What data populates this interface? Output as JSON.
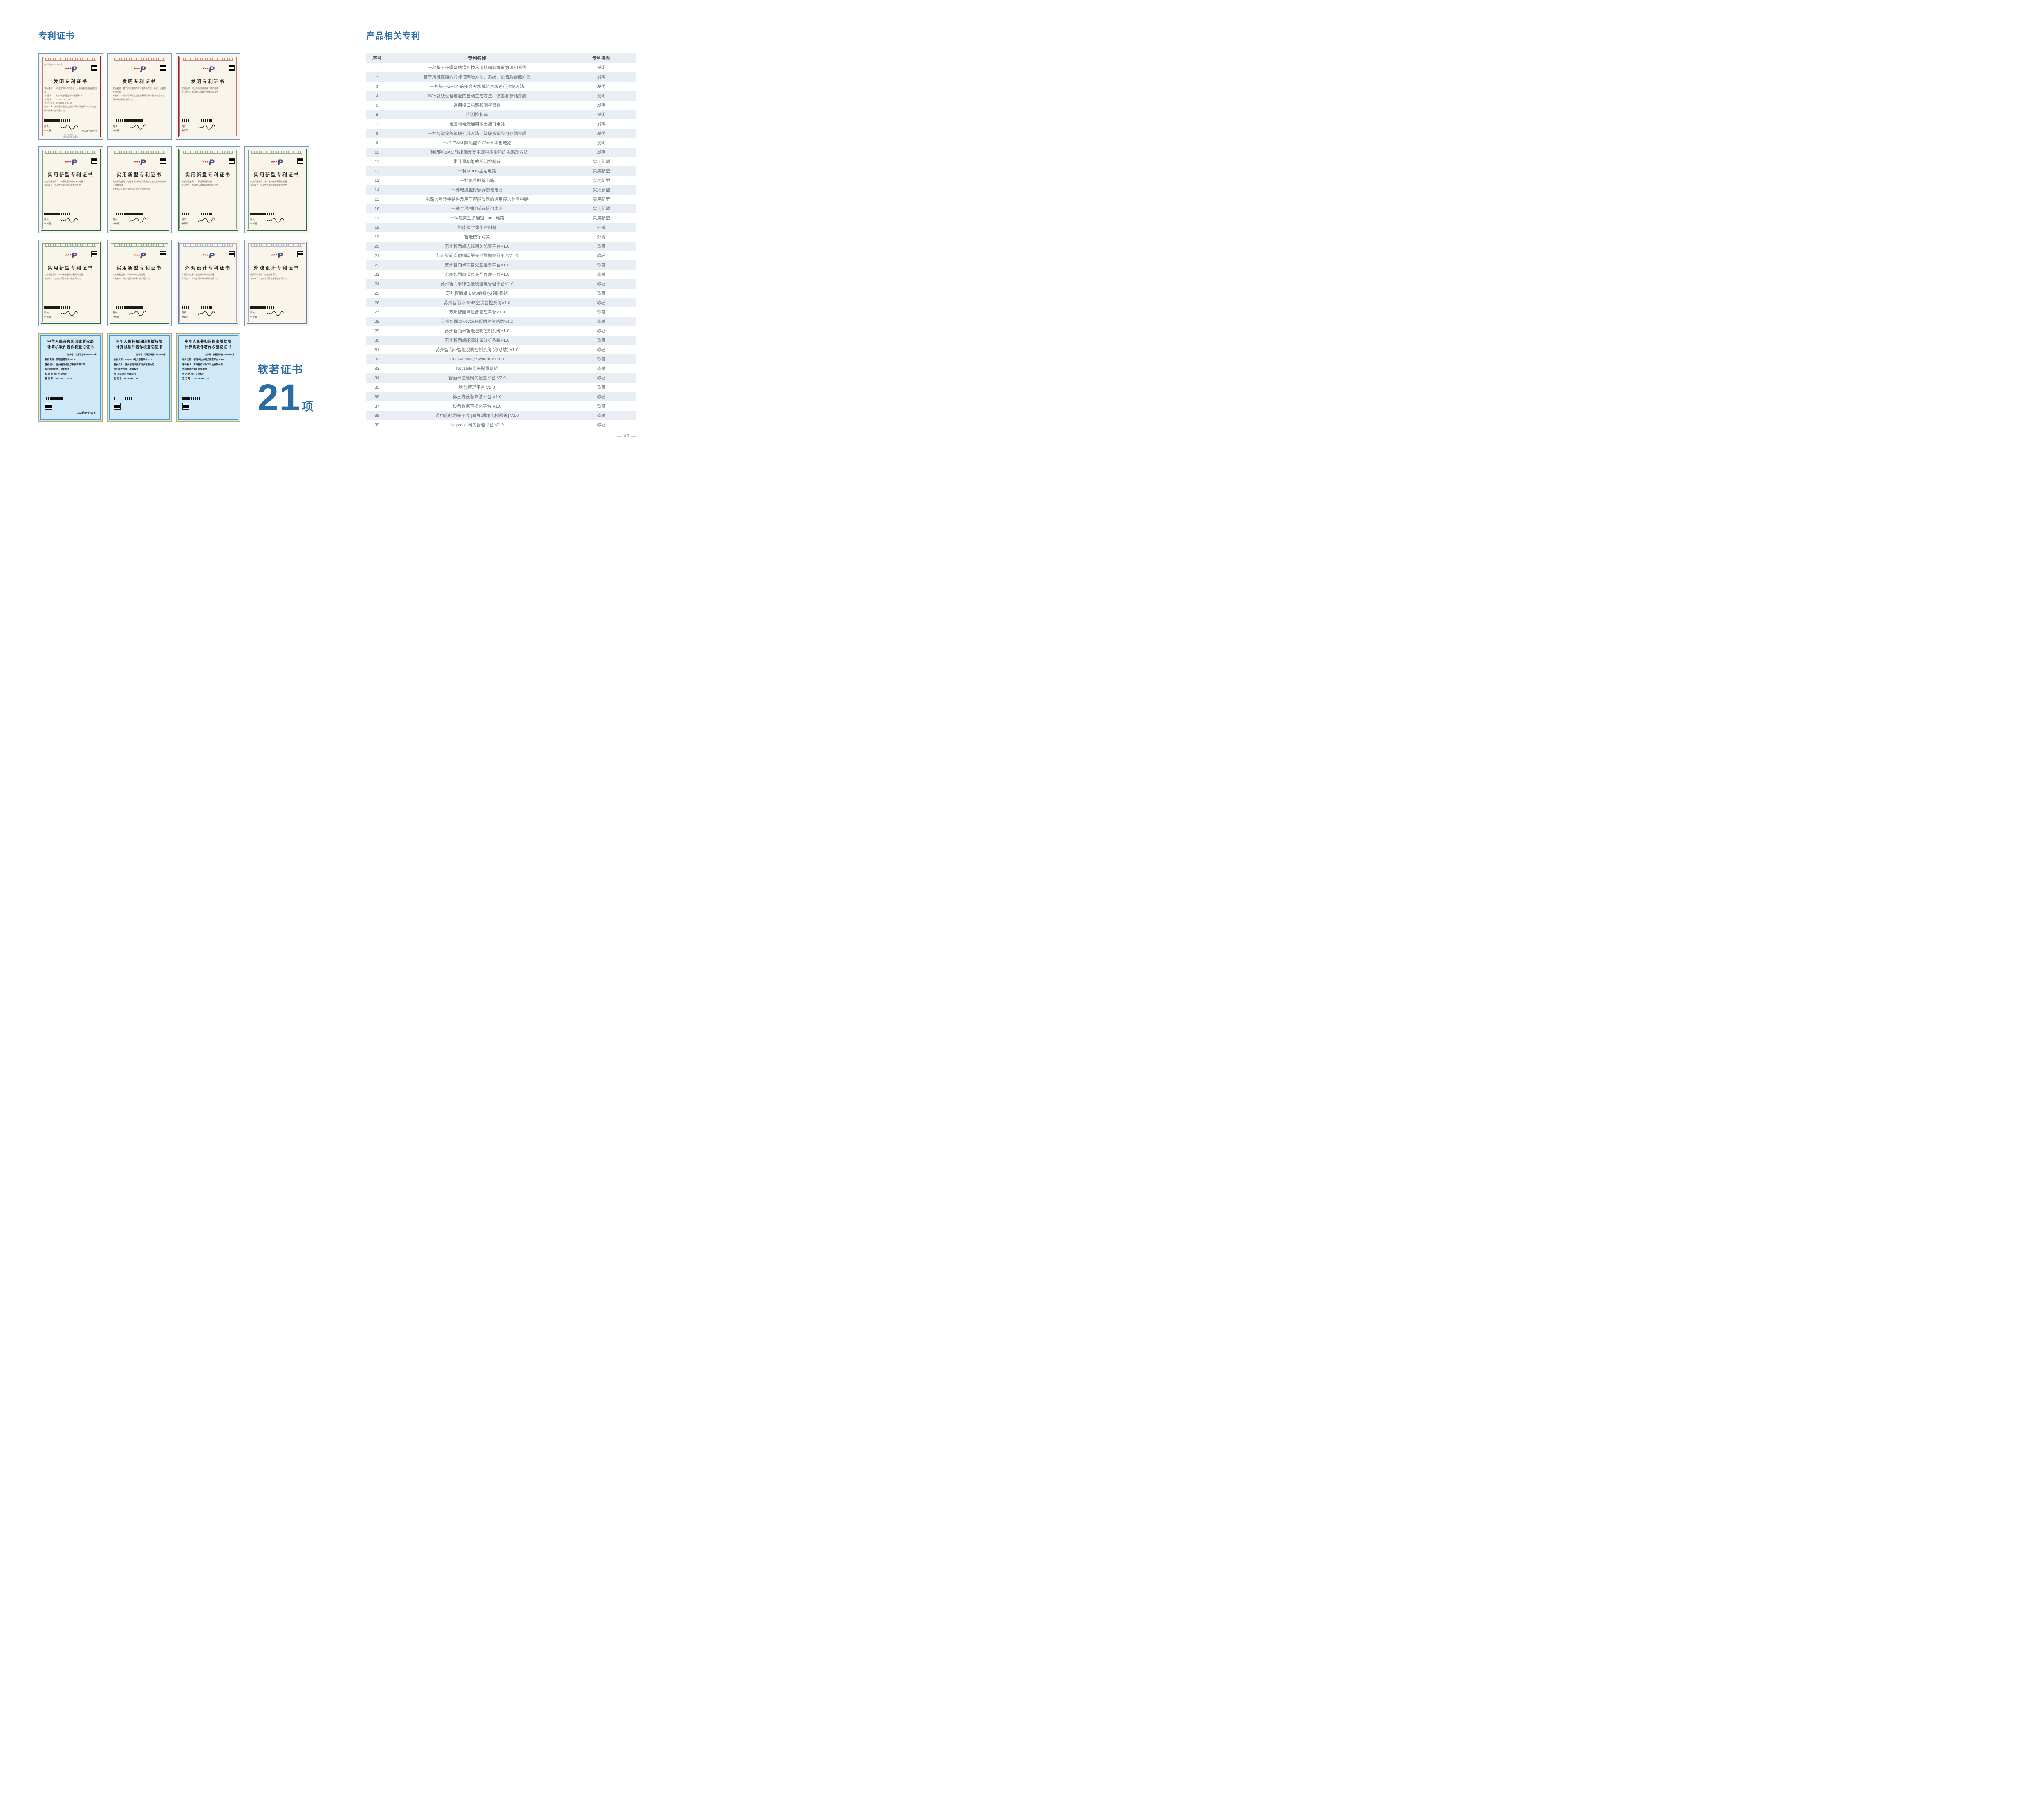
{
  "page": {
    "number": "— 43 —"
  },
  "colors": {
    "accent": "#2b6ca5",
    "stripe": "#e8eef4",
    "cream": "#f9f5ea",
    "invention": "#8e2430",
    "utility": "#2c6a4d",
    "design": "#6678ad",
    "soft_bg": "#cfe9f8",
    "soft_gold": "#c9a45c",
    "soft_blue": "#3f9bd8"
  },
  "left": {
    "title": "专利证书",
    "soft_label": "软著证书",
    "soft_count": "21",
    "soft_unit": "项",
    "cert_rows": [
      [
        {
          "kind": "invention",
          "title": "发明专利证书",
          "cert_no": "证书号第6661534号",
          "lines": [
            "发明名称：一种基于GRNN的多台冷水机组系统运行控制方法",
            "发 明 人：马杰;袁琦;李国建;孙日近;董红林",
            "专 利 号：ZL 2022 1 0427340.7",
            "专利申请日：2022年04月22日",
            "专利权人：苏州思萃融合基建技术研究所有限公司 苏州智而卓数字科技有限公司",
            "授权公告日：2024年01月30日　授权公告号：CN 114636212 B"
          ],
          "signer": "局长",
          "signer_name": "申长雨",
          "date": "2024年01月30日",
          "footer": "第 1 页 (共 2 页)",
          "footer2": "其他事项参见续页"
        },
        {
          "kind": "invention",
          "title": "发明专利证书",
          "cert_no": "",
          "lines": [
            "发明名称：基于风机变频的冷却塔降噪方法、系统、设备及存储介质",
            "专利权人：苏州思萃融合基建技术研究所有限公司 苏州智而卓数字科技有限公司"
          ],
          "signer": "局长",
          "signer_name": "申长雨",
          "date": "",
          "footer": "",
          "footer2": ""
        },
        {
          "kind": "invention",
          "title": "发明专利证书",
          "cert_no": "",
          "lines": [
            "发明名称：电压与电流通用输出接口电路",
            "专利权人：苏州智而卓数字科技有限公司"
          ],
          "signer": "局长",
          "signer_name": "申长雨",
          "date": "",
          "footer": "",
          "footer2": ""
        }
      ],
      [
        {
          "kind": "utility",
          "title": "实用新型专利证书",
          "cert_no": "",
          "lines": [
            "实用新型名称：一种隔离型多通道DAC电路",
            "专利权人：苏州智而卓数字科技有限公司"
          ],
          "signer": "局长",
          "signer_name": "申长雨",
          "date": "",
          "footer": "",
          "footer2": ""
        },
        {
          "kind": "utility",
          "title": "实用新型专利证书",
          "cert_no": "",
          "lines": [
            "实用新型名称：电路信号转换结构及用于智能仪表的通用接入信号电路",
            "专利权人：苏州智而卓数字科技有限公司"
          ],
          "signer": "局长",
          "signer_name": "申长雨",
          "date": "",
          "footer": "",
          "footer2": ""
        },
        {
          "kind": "utility",
          "title": "实用新型专利证书",
          "cert_no": "",
          "lines": [
            "实用新型名称：一种信号解析电路",
            "专利权人：苏州智而卓数字科技有限公司"
          ],
          "signer": "局长",
          "signer_name": "申长雨",
          "date": "",
          "footer": "",
          "footer2": ""
        },
        {
          "kind": "utility",
          "title": "实用新型专利证书",
          "cert_no": "",
          "lines": [
            "实用新型名称：带计量功能的照明控制器",
            "专利权人：苏州智而卓数字科技有限公司"
          ],
          "signer": "局长",
          "signer_name": "申长雨",
          "date": "",
          "footer": "",
          "footer2": ""
        }
      ],
      [
        {
          "kind": "utility",
          "title": "实用新型专利证书",
          "cert_no": "",
          "lines": [
            "实用新型名称：一种电流型传感器授电电路",
            "专利权人：苏州智而卓数字科技有限公司"
          ],
          "signer": "局长",
          "signer_name": "申长雨",
          "date": "",
          "footer": "",
          "footer2": ""
        },
        {
          "kind": "utility",
          "title": "实用新型专利证书",
          "cert_no": "",
          "lines": [
            "实用新型名称：一种MBUS主站电路",
            "专利权人：苏州智而卓数字科技有限公司"
          ],
          "signer": "局长",
          "signer_name": "申长雨",
          "date": "",
          "footer": "",
          "footer2": ""
        },
        {
          "kind": "design",
          "title": "外观设计专利证书",
          "cert_no": "",
          "lines": [
            "外观设计名称：智能楼宇数字控制器",
            "专利权人：苏州智而卓数字科技有限公司"
          ],
          "signer": "局长",
          "signer_name": "申长雨",
          "date": "",
          "footer": "",
          "footer2": ""
        },
        {
          "kind": "design",
          "title": "外观设计专利证书",
          "cert_no": "",
          "lines": [
            "外观设计名称：智能楼宇网关",
            "专利权人：苏州智而卓数字科技有限公司"
          ],
          "signer": "局长",
          "signer_name": "申长雨",
          "date": "",
          "footer": "",
          "footer2": ""
        }
      ],
      [
        {
          "kind": "software",
          "title1": "中华人民共和国国家版权局",
          "title2": "计算机软件著作权登记证书",
          "cert_no": "证书号：软著登字第15865015号",
          "lines": [
            "软件名称：物联管理平台 V2.0",
            "著作权人：苏州智而卓数字科技有限公司",
            "权利取得方式：原始取得",
            "权 利 范 围：全部权利",
            "登 记 号：2025SR1208817"
          ],
          "date": "2025年07月09日"
        },
        {
          "kind": "software",
          "title1": "中华人民共和国国家版权局",
          "title2": "计算机软件著作权登记证书",
          "cert_no": "证书号：软著登字第15835676号",
          "lines": [
            "软件名称：Keyzelle网关管理平台 V1.0",
            "著作权人：苏州智而卓数字科技有限公司",
            "权利取得方式：原始取得",
            "权 利 范 围：全部权利",
            "登 记 号：2025SR1179477"
          ],
          "date": ""
        },
        {
          "kind": "software",
          "title1": "中华人民共和国国家版权局",
          "title2": "计算机软件著作权登记证书",
          "cert_no": "证书号：软著登字第15863449号",
          "lines": [
            "软件名称：智而卓边缘网关配置平台 V2.0",
            "著作权人：苏州智而卓数字科技有限公司",
            "权利取得方式：原始取得",
            "权 利 范 围：全部权利",
            "登 记 号：2025SR1207251"
          ],
          "date": ""
        }
      ]
    ]
  },
  "right": {
    "title": "产品相关专利",
    "table": {
      "headers": [
        "序号",
        "专利名称",
        "专利类型"
      ],
      "rows": [
        [
          "1",
          "一种基于多模型的绿色技术选择辅助决策方法和系统",
          "发明"
        ],
        [
          "2",
          "基于风机变频的冷却塔降噪方法、系统、设备及存储介质",
          "发明"
        ],
        [
          "3",
          "一种基于GRNN的多台冷水机组系统运行控制方法",
          "发明"
        ],
        [
          "4",
          "串行总线设备地址的自动生成方法、装置和存储介质",
          "发明"
        ],
        [
          "5",
          "通用接口电路和测控器件",
          "发明"
        ],
        [
          "6",
          "照明控制器",
          "发明"
        ],
        [
          "7",
          "电压与电流通用输出接口电路",
          "发明"
        ],
        [
          "8",
          "一种智能设备级联扩展方法、级联系统和可存储介质",
          "发明"
        ],
        [
          "9",
          "一种 PWM 隔离型 0-20mA 输出电路",
          "发明"
        ],
        [
          "10",
          "一种消除 DAC 输出偏差受电源电压影响的电路及方法",
          "发明"
        ],
        [
          "11",
          "带计量功能的照明控制器",
          "实用新型"
        ],
        [
          "12",
          "一种MBUS主站电路",
          "实用新型"
        ],
        [
          "13",
          "一种信号解析电路",
          "实用新型"
        ],
        [
          "14",
          "一种电流型传感器授电电路",
          "实用新型"
        ],
        [
          "15",
          "电路信号转换结构及用于智能仪表的通用接入信号电路",
          "实用新型"
        ],
        [
          "16",
          "一种二线制传感器接口电路",
          "实用新型"
        ],
        [
          "17",
          "一种隔离型多通道 DAC 电路",
          "实用新型"
        ],
        [
          "18",
          "智能楼宇数字控制器",
          "外观"
        ],
        [
          "19",
          "智能楼宇网关",
          "外观"
        ],
        [
          "20",
          "苏州智而卓边缘网关配置平台V1.0",
          "软著"
        ],
        [
          "21",
          "苏州智而卓边缘网关底层数据交互平台V1.0",
          "软著"
        ],
        [
          "22",
          "苏州智而卓项目交互展示平台V1.0",
          "软著"
        ],
        [
          "23",
          "苏州智而卓项目交互管理平台V1.0",
          "软著"
        ],
        [
          "24",
          "苏州智而卓绿色低碳建筑管理平台V1.0",
          "软著"
        ],
        [
          "25",
          "苏州智而卓IBMS给排水控制系统",
          "软著"
        ],
        [
          "26",
          "苏州智而卓IBMS空调自控系统V1.0",
          "软著"
        ],
        [
          "27",
          "苏州智而卓设备管理平台V1.0",
          "软著"
        ],
        [
          "28",
          "苏州智而卓Keyzelle照明控制系统V1.0",
          "软著"
        ],
        [
          "29",
          "苏州智而卓智能照明控制系统V1.0",
          "软著"
        ],
        [
          "30",
          "苏州智而卓能源计量分析系统V1.0",
          "软著"
        ],
        [
          "31",
          "苏州智而卓智能照明控制系统 (移动端) V1.0",
          "软著"
        ],
        [
          "32",
          "IoT Gateway System V1.4.0",
          "软著"
        ],
        [
          "33",
          "Keyzelle网关配置系统",
          "软著"
        ],
        [
          "34",
          "智而卓边缘网关配置平台 V2.0",
          "软著"
        ],
        [
          "35",
          "物联管理平台 V2.0",
          "软著"
        ],
        [
          "36",
          "第三方设备算法平台 V1.0",
          "软著"
        ],
        [
          "37",
          "设备数据可视化平台 V1.0",
          "软著"
        ],
        [
          "38",
          "通用能耗网关平台 [简称:通用能耗网关] V2.0",
          "软著"
        ],
        [
          "39",
          "Keyzelle 网关管理平台 V1.0",
          "软著"
        ]
      ]
    }
  }
}
